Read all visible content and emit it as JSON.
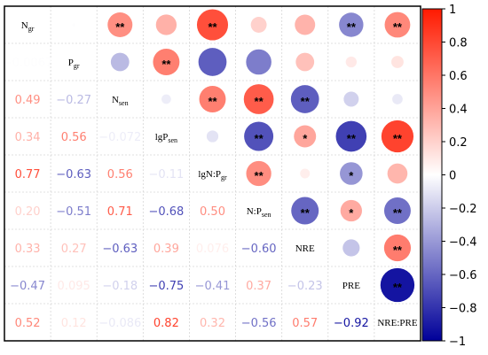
{
  "chart_data": {
    "type": "heatmap",
    "subtype": "correlogram",
    "title": "",
    "variables": [
      {
        "base": "N",
        "sub": "gr"
      },
      {
        "base": "P",
        "sub": "gr"
      },
      {
        "base": "N",
        "sub": "sen"
      },
      {
        "base": "lgP",
        "sub": "sen"
      },
      {
        "base": "lgN:P",
        "sub": "gr"
      },
      {
        "base": "N:P",
        "sub": "sen"
      },
      {
        "base": "NRE",
        "sub": ""
      },
      {
        "base": "PRE",
        "sub": ""
      },
      {
        "base": "NRE:PRE",
        "sub": ""
      }
    ],
    "correlations": [
      [
        1,
        -0.0067,
        0.49,
        0.34,
        0.77,
        0.2,
        0.33,
        -0.47,
        0.52
      ],
      [
        -0.0067,
        1,
        -0.27,
        0.56,
        -0.63,
        -0.51,
        0.27,
        0.095,
        0.12
      ],
      [
        0.49,
        -0.27,
        1,
        -0.072,
        0.56,
        0.71,
        -0.63,
        -0.18,
        -0.086
      ],
      [
        0.34,
        0.56,
        -0.072,
        1,
        -0.11,
        -0.68,
        0.39,
        -0.75,
        0.82
      ],
      [
        0.77,
        -0.63,
        0.56,
        -0.11,
        1,
        0.5,
        0.076,
        -0.41,
        0.32
      ],
      [
        0.2,
        -0.51,
        0.71,
        -0.68,
        0.5,
        1,
        -0.6,
        0.37,
        -0.56
      ],
      [
        0.33,
        0.27,
        -0.63,
        0.39,
        0.076,
        -0.6,
        1,
        -0.23,
        0.57
      ],
      [
        -0.47,
        0.095,
        -0.18,
        -0.75,
        -0.41,
        0.37,
        -0.23,
        1,
        -0.92
      ],
      [
        0.52,
        0.12,
        -0.086,
        0.82,
        0.32,
        -0.56,
        0.57,
        -0.92,
        1
      ]
    ],
    "lower_labels": [
      [
        null,
        null,
        null,
        null,
        null,
        null,
        null,
        null,
        null
      ],
      [
        "-0.0067",
        null,
        null,
        null,
        null,
        null,
        null,
        null,
        null
      ],
      [
        "0.49",
        "-0.27",
        null,
        null,
        null,
        null,
        null,
        null,
        null
      ],
      [
        "0.34",
        "0.56",
        "-0.072",
        null,
        null,
        null,
        null,
        null,
        null
      ],
      [
        "0.77",
        "-0.63",
        "0.56",
        "-0.11",
        null,
        null,
        null,
        null,
        null
      ],
      [
        "0.20",
        "-0.51",
        "0.71",
        "-0.68",
        "0.50",
        null,
        null,
        null,
        null
      ],
      [
        "0.33",
        "0.27",
        "-0.63",
        "0.39",
        "0.076",
        "-0.60",
        null,
        null,
        null
      ],
      [
        "-0.47",
        "0.095",
        "-0.18",
        "-0.75",
        "-0.41",
        "0.37",
        "-0.23",
        null,
        null
      ],
      [
        "0.52",
        "0.12",
        "-0.086",
        "0.82",
        "0.32",
        "-0.56",
        "0.57",
        "-0.92",
        null
      ]
    ],
    "significance": [
      [
        null,
        "",
        "**",
        "",
        "**",
        "",
        "",
        "**",
        "**"
      ],
      [
        null,
        null,
        "",
        "**",
        "",
        "",
        "",
        "",
        ""
      ],
      [
        null,
        null,
        null,
        "",
        "**",
        "**",
        "**",
        "",
        ""
      ],
      [
        null,
        null,
        null,
        null,
        "",
        "**",
        "*",
        "**",
        "**"
      ],
      [
        null,
        null,
        null,
        null,
        null,
        "**",
        "",
        "*",
        ""
      ],
      [
        null,
        null,
        null,
        null,
        null,
        null,
        "**",
        "*",
        "**"
      ],
      [
        null,
        null,
        null,
        null,
        null,
        null,
        null,
        "",
        "**"
      ],
      [
        null,
        null,
        null,
        null,
        null,
        null,
        null,
        null,
        "**"
      ],
      [
        null,
        null,
        null,
        null,
        null,
        null,
        null,
        null,
        null
      ]
    ],
    "colorbar": {
      "range": [
        -1,
        1
      ],
      "ticks": [
        "1",
        "0.8",
        "0.6",
        "0.4",
        "0.2",
        "0",
        "−0.2",
        "−0.4",
        "−0.6",
        "−0.8",
        "−1"
      ],
      "positive_color": "#ff1a00",
      "zero_color": "#ffffff",
      "negative_color": "#000099"
    },
    "grid": true,
    "legend": "right"
  }
}
